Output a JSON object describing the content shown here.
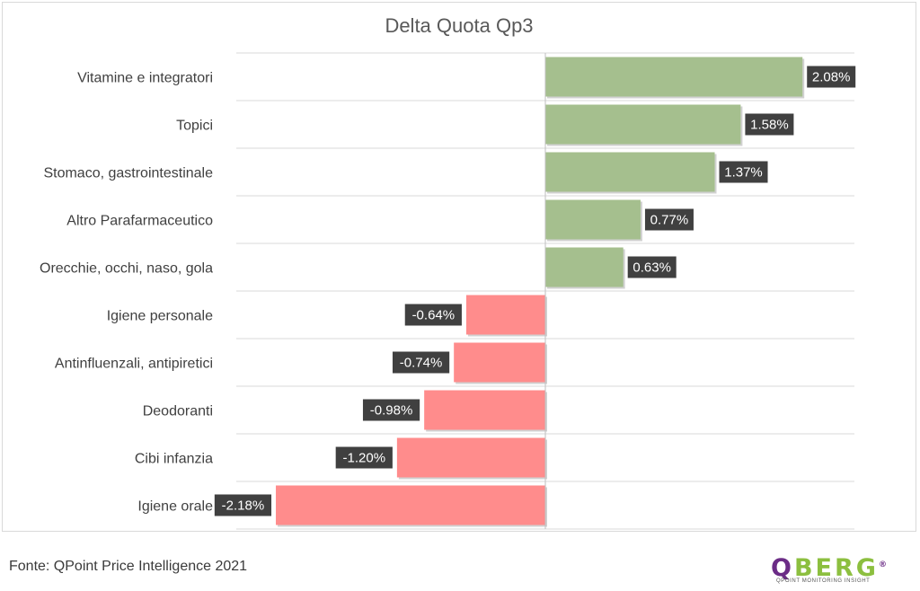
{
  "chart_data": {
    "type": "bar",
    "orientation": "horizontal",
    "title": "Delta Quota Qp3",
    "categories": [
      "Vitamine e integratori",
      "Topici",
      "Stomaco, gastrointestinale",
      "Altro Parafarmaceutico",
      "Orecchie, occhi, naso, gola",
      "Igiene personale",
      "Antinfluenzali, antipiretici",
      "Deodoranti",
      "Cibi infanzia",
      "Igiene orale"
    ],
    "values": [
      2.08,
      1.58,
      1.37,
      0.77,
      0.63,
      -0.64,
      -0.74,
      -0.98,
      -1.2,
      -2.18
    ],
    "data_labels": [
      "2.08%",
      "1.58%",
      "1.37%",
      "0.77%",
      "0.63%",
      "-0.64%",
      "-0.74%",
      "-0.98%",
      "-1.20%",
      "-2.18%"
    ],
    "value_unit": "%",
    "xlim": [
      -2.5,
      2.5
    ],
    "grid": true,
    "legend": "none",
    "colors": {
      "positive": "#a5bf8e",
      "negative": "#ff8c8c",
      "label_bg": "#404040",
      "label_text": "#ffffff",
      "grid": "#d9d9d9",
      "category_text": "#404040",
      "title_text": "#595959"
    }
  },
  "footer": {
    "source": "Fonte: QPoint Price Intelligence 2021",
    "logo_q": "Q",
    "logo_rest": "BERG",
    "logo_reg": "®",
    "logo_tagline": "QPOINT MONITORING INSIGHT"
  }
}
